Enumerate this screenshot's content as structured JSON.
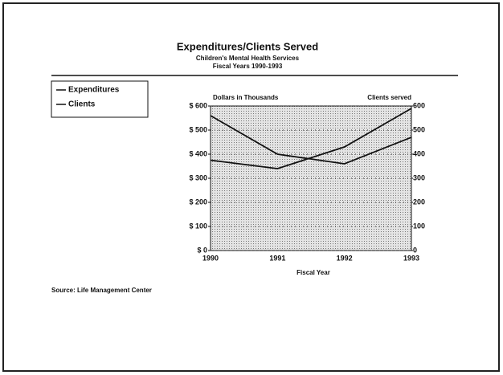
{
  "chart_data": {
    "type": "line",
    "title": "Expenditures/Clients Served",
    "subtitle": [
      "Children's Mental Health Services",
      "Fiscal Years 1990-1993"
    ],
    "y_axis_label": "Dollars in Thousands",
    "y2_axis_label": "Clients served",
    "x_axis_label": "Fiscal Year",
    "source": "Source: Life Management Center",
    "categories": [
      "1990",
      "1991",
      "1992",
      "1993"
    ],
    "series": [
      {
        "name": "Expenditures",
        "color": "#111111",
        "values": [
          375,
          340,
          430,
          590
        ]
      },
      {
        "name": "Clients",
        "color": "#111111",
        "axis": "y2",
        "values": [
          560,
          400,
          360,
          470
        ]
      }
    ],
    "ylim": [
      0,
      600
    ],
    "yticks": [
      {
        "value": 0,
        "label": "$ 0"
      },
      {
        "value": 100,
        "label": "$ 100"
      },
      {
        "value": 200,
        "label": "$ 200"
      },
      {
        "value": 300,
        "label": "$ 300"
      },
      {
        "value": 400,
        "label": "$ 400"
      },
      {
        "value": 500,
        "label": "$ 500"
      },
      {
        "value": 600,
        "label": "$ 600"
      }
    ],
    "y2lim": [
      0,
      600
    ],
    "y2ticks": [
      0,
      100,
      200,
      300,
      400,
      500,
      600
    ],
    "grid": true,
    "legend": "top-left"
  }
}
